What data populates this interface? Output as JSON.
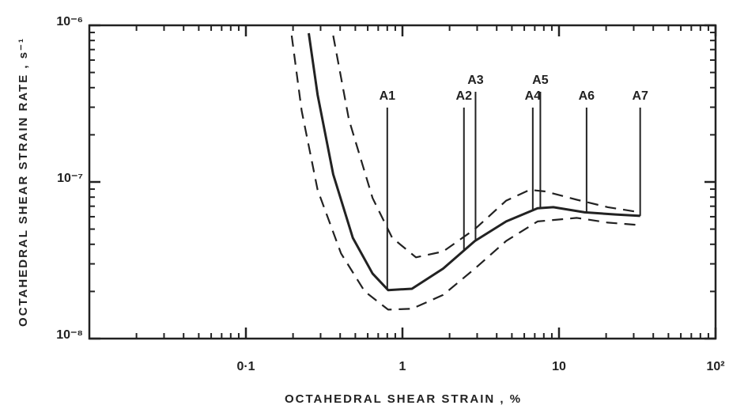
{
  "chart_data": {
    "type": "line",
    "x_label": "OCTAHEDRAL SHEAR STRAIN , %",
    "y_label": "OCTAHEDRAL SHEAR STRAIN RATE , s⁻¹",
    "xscale": "log",
    "yscale": "log",
    "xlim": [
      0.01,
      100
    ],
    "ylim": [
      1e-08,
      1e-06
    ],
    "xticks": [
      {
        "value": 0.1,
        "label": "0·1"
      },
      1,
      10,
      {
        "value": 100,
        "label": "10²"
      }
    ],
    "yticks": [
      {
        "value": 1e-08,
        "label": "10⁻⁸"
      },
      {
        "value": 1e-07,
        "label": "10⁻⁷"
      },
      {
        "value": 1e-06,
        "label": "10⁻⁶"
      }
    ],
    "series": [
      {
        "color": "#222222",
        "style": "solid",
        "x": [
          0.252,
          0.287,
          0.361,
          0.482,
          0.644,
          0.81,
          1.15,
          1.82,
          2.9,
          4.6,
          7.3,
          9.2,
          14.6,
          23,
          33
        ],
        "values": [
          8.9e-07,
          3.6e-07,
          1.12e-07,
          4.4e-08,
          2.6e-08,
          2.04e-08,
          2.08e-08,
          2.8e-08,
          4.2e-08,
          5.6e-08,
          6.8e-08,
          6.9e-08,
          6.4e-08,
          6.2e-08,
          6.07e-08
        ]
      },
      {
        "color": "#222222",
        "style": "dashed",
        "x": [
          0.361,
          0.455,
          0.644,
          0.86,
          1.22,
          1.82,
          2.9,
          4.6,
          6.5,
          8.2,
          13,
          20.5,
          33
        ],
        "values": [
          8.6e-07,
          2.5e-07,
          7.9e-08,
          4.4e-08,
          3.3e-08,
          3.6e-08,
          5e-08,
          7.6e-08,
          8.9e-08,
          8.7e-08,
          7.7e-08,
          6.9e-08,
          6.4e-08
        ]
      },
      {
        "color": "#222222",
        "style": "dashed",
        "x": [
          0.196,
          0.227,
          0.287,
          0.405,
          0.574,
          0.81,
          1.15,
          1.82,
          2.9,
          4.6,
          7.3,
          13,
          20.5,
          33
        ],
        "values": [
          8.6e-07,
          2.85e-07,
          8.9e-08,
          3.5e-08,
          2e-08,
          1.53e-08,
          1.55e-08,
          1.9e-08,
          2.8e-08,
          4.2e-08,
          5.6e-08,
          5.9e-08,
          5.5e-08,
          5.3e-08
        ]
      }
    ],
    "annotations": [
      {
        "label": "A1",
        "x": 0.8
      },
      {
        "label": "A2",
        "x": 2.47
      },
      {
        "label": "A3",
        "x": 2.93
      },
      {
        "label": "A4",
        "x": 6.8
      },
      {
        "label": "A5",
        "x": 7.6
      },
      {
        "label": "A6",
        "x": 15
      },
      {
        "label": "A7",
        "x": 33
      }
    ]
  }
}
